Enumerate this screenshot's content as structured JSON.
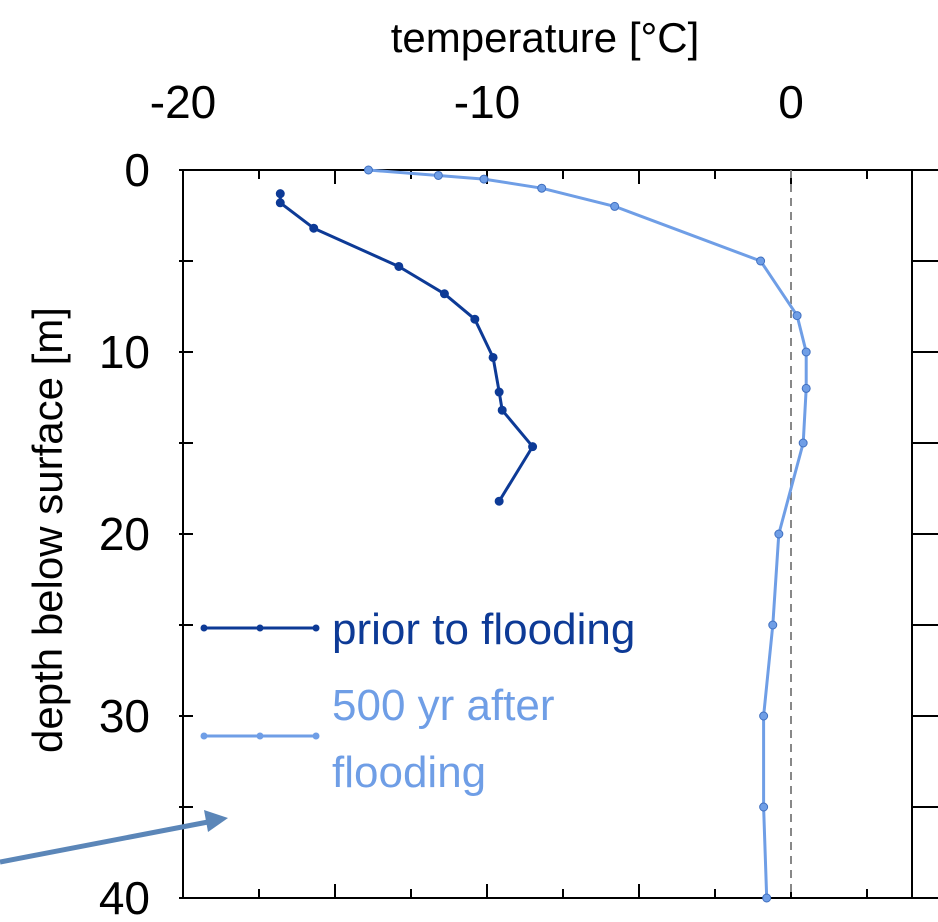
{
  "chart_data": {
    "type": "line",
    "title": "",
    "xlabel": "temperature [°C]",
    "ylabel": "depth below surface [m]",
    "x_axis_position": "top",
    "y_axis_inverted": true,
    "xlim": [
      -20,
      6
    ],
    "ylim": [
      0,
      40
    ],
    "xticks": [
      -20,
      -10,
      0
    ],
    "yticks": [
      0,
      10,
      20,
      30,
      40
    ],
    "grid": false,
    "reference_line": {
      "x": 0,
      "style": "dashed",
      "color": "#888888"
    },
    "legend": {
      "placement": "bottom-left",
      "entries": [
        "prior to flooding",
        "500 yr after flooding"
      ]
    },
    "series": [
      {
        "name": "prior to flooding",
        "color": "#0d3a96",
        "points": [
          {
            "x": -16.8,
            "y": 1.3
          },
          {
            "x": -16.8,
            "y": 1.8
          },
          {
            "x": -15.7,
            "y": 3.2
          },
          {
            "x": -12.9,
            "y": 5.3
          },
          {
            "x": -11.4,
            "y": 6.8
          },
          {
            "x": -10.4,
            "y": 8.2
          },
          {
            "x": -9.8,
            "y": 10.3
          },
          {
            "x": -9.6,
            "y": 12.2
          },
          {
            "x": -9.5,
            "y": 13.2
          },
          {
            "x": -8.5,
            "y": 15.2
          },
          {
            "x": -9.6,
            "y": 18.2
          }
        ]
      },
      {
        "name": "500 yr after flooding",
        "color": "#6f9ee6",
        "points": [
          {
            "x": -13.9,
            "y": 0
          },
          {
            "x": -11.6,
            "y": 0.3
          },
          {
            "x": -10.1,
            "y": 0.5
          },
          {
            "x": -8.2,
            "y": 1.0
          },
          {
            "x": -5.8,
            "y": 2.0
          },
          {
            "x": -1.0,
            "y": 5.0
          },
          {
            "x": 0.2,
            "y": 8.0
          },
          {
            "x": 0.5,
            "y": 10.0
          },
          {
            "x": 0.5,
            "y": 12.0
          },
          {
            "x": 0.4,
            "y": 15.0
          },
          {
            "x": -0.4,
            "y": 20.0
          },
          {
            "x": -0.6,
            "y": 25.0
          },
          {
            "x": -0.9,
            "y": 30.0
          },
          {
            "x": -0.9,
            "y": 35.0
          },
          {
            "x": -0.8,
            "y": 40.0
          }
        ]
      }
    ]
  },
  "labels": {
    "xlabel": "temperature [°C]",
    "ylabel": "depth below surface [m]",
    "legend_prior": "prior to flooding",
    "legend_after_line1": "500 yr after",
    "legend_after_line2": "flooding"
  }
}
